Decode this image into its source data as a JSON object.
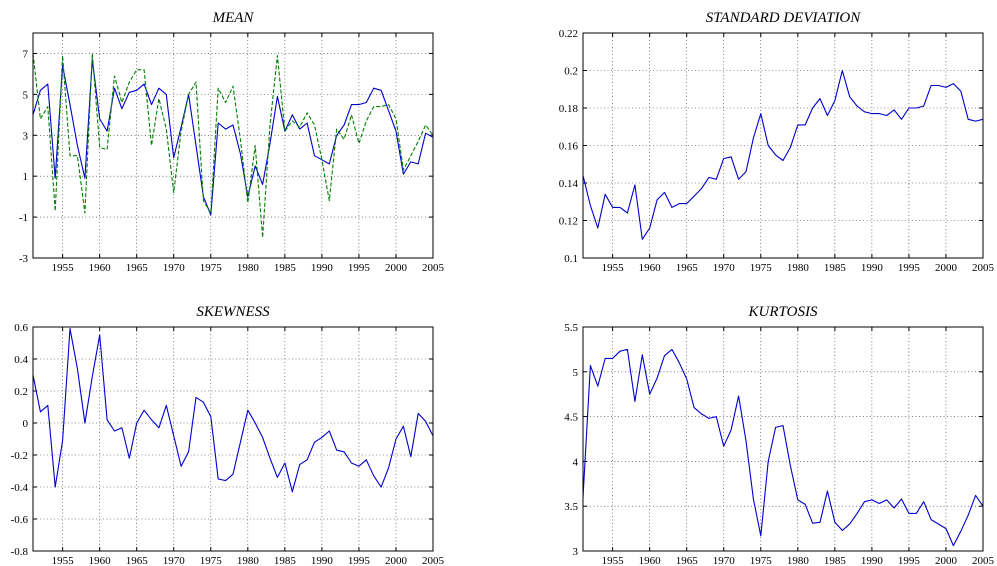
{
  "chart_data": [
    {
      "type": "line",
      "title": "MEAN",
      "xlim": [
        1951,
        2005
      ],
      "ylim": [
        -3,
        8
      ],
      "xticks": [
        "1955",
        "1960",
        "1965",
        "1970",
        "1975",
        "1980",
        "1985",
        "1990",
        "1995",
        "2000",
        "2005"
      ],
      "yticks": [
        "-3",
        "-1",
        "1",
        "3",
        "5",
        "7"
      ],
      "grid": true,
      "x": [
        1951,
        1952,
        1953,
        1954,
        1955,
        1956,
        1957,
        1958,
        1959,
        1960,
        1961,
        1962,
        1963,
        1964,
        1965,
        1966,
        1967,
        1968,
        1969,
        1970,
        1971,
        1972,
        1973,
        1974,
        1975,
        1976,
        1977,
        1978,
        1979,
        1980,
        1981,
        1982,
        1983,
        1984,
        1985,
        1986,
        1987,
        1988,
        1989,
        1990,
        1991,
        1992,
        1993,
        1994,
        1995,
        1996,
        1997,
        1998,
        1999,
        2000,
        2001,
        2002,
        2003,
        2004,
        2005
      ],
      "series": [
        {
          "color": "#0000cc",
          "style": "solid",
          "values": [
            4.0,
            5.2,
            5.5,
            0.9,
            6.4,
            4.5,
            2.5,
            0.9,
            6.7,
            3.8,
            3.2,
            5.3,
            4.3,
            5.1,
            5.2,
            5.5,
            4.5,
            5.3,
            5.0,
            1.9,
            3.4,
            5.0,
            2.5,
            0.0,
            -0.9,
            3.6,
            3.3,
            3.5,
            2.1,
            0.0,
            1.5,
            0.6,
            2.6,
            4.9,
            3.2,
            4.0,
            3.3,
            3.6,
            2.0,
            1.8,
            1.6,
            3.0,
            3.5,
            4.5,
            4.5,
            4.6,
            5.3,
            5.2,
            4.2,
            3.2,
            1.1,
            1.7,
            1.6,
            3.1,
            2.9
          ]
        },
        {
          "color": "#008000",
          "style": "dashed",
          "values": [
            7.0,
            3.8,
            4.4,
            -0.7,
            6.9,
            2.0,
            2.0,
            -0.8,
            7.0,
            2.4,
            2.3,
            5.9,
            4.6,
            5.6,
            6.2,
            6.2,
            2.5,
            4.8,
            3.3,
            0.2,
            3.2,
            5.0,
            5.6,
            -0.2,
            -0.8,
            5.3,
            4.6,
            5.4,
            2.8,
            -0.3,
            2.5,
            -2.0,
            3.5,
            6.9,
            3.2,
            3.7,
            3.4,
            4.1,
            3.5,
            1.8,
            -0.2,
            3.3,
            2.8,
            4.0,
            2.6,
            3.7,
            4.4,
            4.4,
            4.5,
            3.8,
            1.3,
            2.0,
            2.7,
            3.5,
            3.0
          ]
        }
      ]
    },
    {
      "type": "line",
      "title": "STANDARD DEVIATION",
      "xlim": [
        1951,
        2005
      ],
      "ylim": [
        0.1,
        0.22
      ],
      "xticks": [
        "1955",
        "1960",
        "1965",
        "1970",
        "1975",
        "1980",
        "1985",
        "1990",
        "1995",
        "2000",
        "2005"
      ],
      "yticks": [
        "0.1",
        "0.12",
        "0.14",
        "0.16",
        "0.18",
        "0.2",
        "0.22"
      ],
      "grid": true,
      "x": [
        1951,
        1952,
        1953,
        1954,
        1955,
        1956,
        1957,
        1958,
        1959,
        1960,
        1961,
        1962,
        1963,
        1964,
        1965,
        1966,
        1967,
        1968,
        1969,
        1970,
        1971,
        1972,
        1973,
        1974,
        1975,
        1976,
        1977,
        1978,
        1979,
        1980,
        1981,
        1982,
        1983,
        1984,
        1985,
        1986,
        1987,
        1988,
        1989,
        1990,
        1991,
        1992,
        1993,
        1994,
        1995,
        1996,
        1997,
        1998,
        1999,
        2000,
        2001,
        2002,
        2003,
        2004,
        2005
      ],
      "series": [
        {
          "color": "#0000cc",
          "style": "solid",
          "values": [
            0.144,
            0.128,
            0.116,
            0.134,
            0.127,
            0.127,
            0.124,
            0.139,
            0.11,
            0.116,
            0.131,
            0.135,
            0.127,
            0.129,
            0.129,
            0.133,
            0.137,
            0.143,
            0.142,
            0.153,
            0.154,
            0.142,
            0.146,
            0.164,
            0.177,
            0.16,
            0.155,
            0.152,
            0.159,
            0.171,
            0.171,
            0.18,
            0.185,
            0.176,
            0.184,
            0.2,
            0.186,
            0.181,
            0.178,
            0.177,
            0.177,
            0.176,
            0.179,
            0.174,
            0.18,
            0.18,
            0.181,
            0.192,
            0.192,
            0.191,
            0.193,
            0.189,
            0.174,
            0.173,
            0.174
          ]
        }
      ]
    },
    {
      "type": "line",
      "title": "SKEWNESS",
      "xlim": [
        1951,
        2005
      ],
      "ylim": [
        -0.8,
        0.6
      ],
      "xticks": [
        "1955",
        "1960",
        "1965",
        "1970",
        "1975",
        "1980",
        "1985",
        "1990",
        "1995",
        "2000",
        "2005"
      ],
      "yticks": [
        "-0.8",
        "-0.6",
        "-0.4",
        "-0.2",
        "0",
        "0.2",
        "0.4",
        "0.6"
      ],
      "grid": true,
      "x": [
        1951,
        1952,
        1953,
        1954,
        1955,
        1956,
        1957,
        1958,
        1959,
        1960,
        1961,
        1962,
        1963,
        1964,
        1965,
        1966,
        1967,
        1968,
        1969,
        1970,
        1971,
        1972,
        1973,
        1974,
        1975,
        1976,
        1977,
        1978,
        1979,
        1980,
        1981,
        1982,
        1983,
        1984,
        1985,
        1986,
        1987,
        1988,
        1989,
        1990,
        1991,
        1992,
        1993,
        1994,
        1995,
        1996,
        1997,
        1998,
        1999,
        2000,
        2001,
        2002,
        2003,
        2004,
        2005
      ],
      "series": [
        {
          "color": "#0000cc",
          "style": "solid",
          "values": [
            0.3,
            0.07,
            0.11,
            -0.4,
            -0.11,
            0.59,
            0.34,
            0.0,
            0.29,
            0.55,
            0.02,
            -0.05,
            -0.03,
            -0.22,
            0.0,
            0.08,
            0.02,
            -0.03,
            0.11,
            -0.08,
            -0.27,
            -0.18,
            0.16,
            0.13,
            0.04,
            -0.35,
            -0.36,
            -0.32,
            -0.12,
            0.08,
            0.0,
            -0.09,
            -0.22,
            -0.34,
            -0.25,
            -0.43,
            -0.26,
            -0.23,
            -0.12,
            -0.09,
            -0.05,
            -0.17,
            -0.18,
            -0.25,
            -0.27,
            -0.23,
            -0.33,
            -0.4,
            -0.28,
            -0.1,
            -0.02,
            -0.21,
            0.06,
            0.01,
            -0.08
          ]
        }
      ]
    },
    {
      "type": "line",
      "title": "KURTOSIS",
      "xlim": [
        1951,
        2005
      ],
      "ylim": [
        3,
        5.5
      ],
      "xticks": [
        "1955",
        "1960",
        "1965",
        "1970",
        "1975",
        "1980",
        "1985",
        "1990",
        "1995",
        "2000",
        "2005"
      ],
      "yticks": [
        "3",
        "3.5",
        "4",
        "4.5",
        "5",
        "5.5"
      ],
      "grid": true,
      "x": [
        1951,
        1952,
        1953,
        1954,
        1955,
        1956,
        1957,
        1958,
        1959,
        1960,
        1961,
        1962,
        1963,
        1964,
        1965,
        1966,
        1967,
        1968,
        1969,
        1970,
        1971,
        1972,
        1973,
        1974,
        1975,
        1976,
        1977,
        1978,
        1979,
        1980,
        1981,
        1982,
        1983,
        1984,
        1985,
        1986,
        1987,
        1988,
        1989,
        1990,
        1991,
        1992,
        1993,
        1994,
        1995,
        1996,
        1997,
        1998,
        1999,
        2000,
        2001,
        2002,
        2003,
        2004,
        2005
      ],
      "series": [
        {
          "color": "#0000cc",
          "style": "solid",
          "values": [
            3.6,
            5.07,
            4.84,
            5.15,
            5.15,
            5.23,
            5.25,
            4.67,
            5.19,
            4.75,
            4.93,
            5.18,
            5.25,
            5.1,
            4.92,
            4.6,
            4.53,
            4.48,
            4.5,
            4.17,
            4.35,
            4.73,
            4.23,
            3.58,
            3.17,
            4.0,
            4.38,
            4.4,
            3.95,
            3.57,
            3.52,
            3.31,
            3.32,
            3.67,
            3.32,
            3.23,
            3.3,
            3.42,
            3.55,
            3.57,
            3.53,
            3.57,
            3.48,
            3.58,
            3.42,
            3.42,
            3.55,
            3.35,
            3.3,
            3.25,
            3.06,
            3.22,
            3.4,
            3.62,
            3.5
          ]
        }
      ]
    }
  ]
}
